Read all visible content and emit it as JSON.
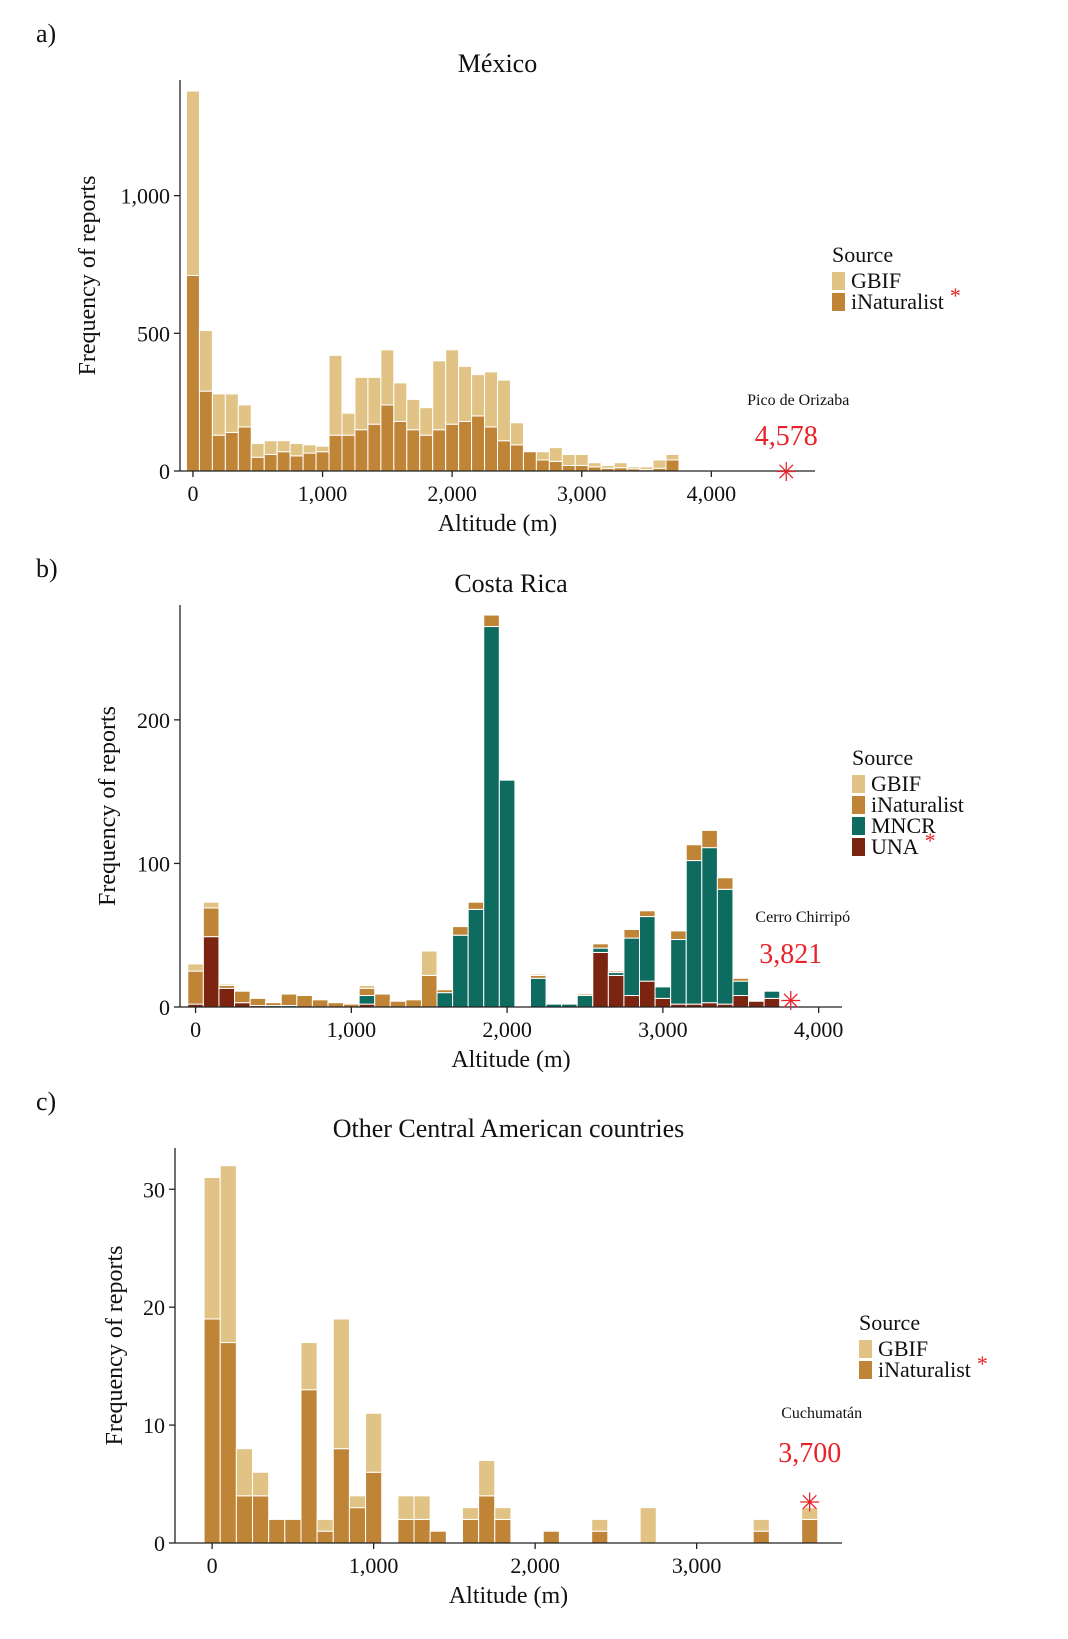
{
  "colors": {
    "GBIF": "#e1c485",
    "iNaturalist": "#c08436",
    "MNCR": "#0e6b60",
    "UNA": "#7b2510",
    "highlight": "#e8232a"
  },
  "chart_data": [
    {
      "type": "bar",
      "stacked": true,
      "panel": "a)",
      "title": "México",
      "xlabel": "Altitude (m)",
      "ylabel": "Frequency of reports",
      "xlim": [
        -100,
        4800
      ],
      "ylim": [
        0,
        1420
      ],
      "x_ticks": [
        0,
        1000,
        2000,
        3000,
        4000
      ],
      "x_tick_labels": [
        "0",
        "1,000",
        "2,000",
        "3,000",
        "4,000"
      ],
      "y_ticks": [
        0,
        500,
        1000
      ],
      "y_tick_labels": [
        "0",
        "500",
        "1,000"
      ],
      "bin_width": 100,
      "legend_title": "Source",
      "legend_position": "right",
      "legend_marked_series": "iNaturalist",
      "x": [
        0,
        100,
        200,
        300,
        400,
        500,
        600,
        700,
        800,
        900,
        1000,
        1100,
        1200,
        1300,
        1400,
        1500,
        1600,
        1700,
        1800,
        1900,
        2000,
        2100,
        2200,
        2300,
        2400,
        2500,
        2600,
        2700,
        2800,
        2900,
        3000,
        3100,
        3200,
        3300,
        3400,
        3500,
        3600,
        3700
      ],
      "series": [
        {
          "name": "iNaturalist",
          "values": [
            710,
            290,
            130,
            140,
            160,
            50,
            60,
            70,
            55,
            65,
            70,
            130,
            130,
            150,
            170,
            240,
            180,
            150,
            130,
            150,
            170,
            180,
            200,
            160,
            110,
            95,
            70,
            40,
            35,
            20,
            20,
            15,
            10,
            12,
            8,
            5,
            10,
            40
          ]
        },
        {
          "name": "GBIF",
          "values": [
            670,
            220,
            150,
            140,
            80,
            50,
            50,
            40,
            45,
            30,
            20,
            290,
            80,
            190,
            170,
            200,
            140,
            110,
            100,
            250,
            270,
            200,
            150,
            200,
            220,
            80,
            0,
            30,
            50,
            40,
            40,
            15,
            10,
            18,
            7,
            10,
            30,
            20
          ]
        }
      ],
      "peak": {
        "name": "Pico de Orizaba",
        "value_label": "4,578",
        "x": 4578,
        "y": 0
      }
    },
    {
      "type": "bar",
      "stacked": true,
      "panel": "b)",
      "title": "Costa Rica",
      "xlabel": "Altitude (m)",
      "ylabel": "Frequency of reports",
      "xlim": [
        -100,
        4150
      ],
      "ylim": [
        0,
        280
      ],
      "x_ticks": [
        0,
        1000,
        2000,
        3000,
        4000
      ],
      "x_tick_labels": [
        "0",
        "1,000",
        "2,000",
        "3,000",
        "4,000"
      ],
      "y_ticks": [
        0,
        100,
        200
      ],
      "y_tick_labels": [
        "0",
        "100",
        "200"
      ],
      "bin_width": 100,
      "legend_title": "Source",
      "legend_position": "right",
      "legend_marked_series": "UNA",
      "x": [
        0,
        100,
        200,
        300,
        400,
        500,
        600,
        700,
        800,
        900,
        1000,
        1100,
        1200,
        1300,
        1400,
        1500,
        1600,
        1700,
        1800,
        1900,
        2000,
        2100,
        2200,
        2300,
        2400,
        2500,
        2600,
        2700,
        2800,
        2900,
        3000,
        3100,
        3200,
        3300,
        3400,
        3500,
        3600,
        3700
      ],
      "series": [
        {
          "name": "UNA",
          "values": [
            2,
            49,
            13,
            3,
            1,
            0,
            0,
            0,
            0,
            0,
            0,
            2,
            0,
            0,
            0,
            0,
            0,
            0,
            0,
            0,
            0,
            0,
            0,
            0,
            0,
            0,
            38,
            22,
            8,
            18,
            6,
            2,
            2,
            3,
            2,
            8,
            4,
            6
          ]
        },
        {
          "name": "MNCR",
          "values": [
            0,
            0,
            0,
            0,
            0,
            1,
            1,
            0,
            0,
            0,
            0,
            6,
            0,
            0,
            0,
            0,
            10,
            50,
            68,
            265,
            158,
            0,
            20,
            2,
            2,
            8,
            3,
            2,
            40,
            45,
            8,
            45,
            100,
            108,
            80,
            10,
            0,
            5
          ]
        },
        {
          "name": "iNaturalist",
          "values": [
            23,
            20,
            2,
            8,
            5,
            2,
            8,
            8,
            5,
            3,
            2,
            5,
            9,
            4,
            5,
            22,
            2,
            6,
            5,
            8,
            0,
            0,
            2,
            0,
            0,
            1,
            3,
            1,
            6,
            4,
            0,
            6,
            11,
            12,
            8,
            2,
            0,
            0
          ]
        },
        {
          "name": "GBIF",
          "values": [
            5,
            4,
            1,
            0,
            0,
            0,
            0,
            0,
            0,
            0,
            0,
            2,
            0,
            0,
            0,
            17,
            0,
            0,
            0,
            0,
            0,
            0,
            1,
            0,
            0,
            0,
            0,
            0,
            0,
            0,
            0,
            0,
            0,
            0,
            0,
            0,
            0,
            0
          ]
        }
      ],
      "peak": {
        "name": "Cerro Chirripó",
        "value_label": "3,821",
        "x": 3821,
        "y": 5
      }
    },
    {
      "type": "bar",
      "stacked": true,
      "panel": "c)",
      "title": "Other Central American countries",
      "xlabel": "Altitude (m)",
      "ylabel": "Frequency of reports",
      "xlim": [
        -230,
        3900
      ],
      "ylim": [
        0,
        33.5
      ],
      "x_ticks": [
        0,
        1000,
        2000,
        3000
      ],
      "x_tick_labels": [
        "0",
        "1,000",
        "2,000",
        "3,000"
      ],
      "y_ticks": [
        0,
        10,
        20,
        30
      ],
      "y_tick_labels": [
        "0",
        "10",
        "20",
        "30"
      ],
      "bin_width": 100,
      "legend_title": "Source",
      "legend_position": "right",
      "legend_marked_series": "iNaturalist",
      "x": [
        0,
        100,
        200,
        300,
        400,
        500,
        600,
        700,
        800,
        900,
        1000,
        1100,
        1200,
        1300,
        1400,
        1500,
        1600,
        1700,
        1800,
        1900,
        2000,
        2100,
        2200,
        2300,
        2400,
        2500,
        2600,
        2700,
        2800,
        2900,
        3000,
        3100,
        3200,
        3300,
        3400,
        3500,
        3600,
        3700
      ],
      "series": [
        {
          "name": "iNaturalist",
          "values": [
            19,
            17,
            4,
            4,
            2,
            2,
            13,
            1,
            8,
            3,
            6,
            0,
            2,
            2,
            1,
            0,
            2,
            4,
            2,
            0,
            0,
            1,
            0,
            0,
            1,
            0,
            0,
            0,
            0,
            0,
            0,
            0,
            0,
            0,
            1,
            0,
            0,
            2
          ]
        },
        {
          "name": "GBIF",
          "values": [
            12,
            15,
            4,
            2,
            0,
            0,
            4,
            1,
            11,
            1,
            5,
            0,
            2,
            2,
            0,
            0,
            1,
            3,
            1,
            0,
            0,
            0,
            0,
            0,
            1,
            0,
            0,
            3,
            0,
            0,
            0,
            0,
            0,
            0,
            1,
            0,
            0,
            1
          ]
        }
      ],
      "peak": {
        "name": "Cuchumatán",
        "value_label": "3,700",
        "x": 3700,
        "y": 3.5
      }
    }
  ]
}
